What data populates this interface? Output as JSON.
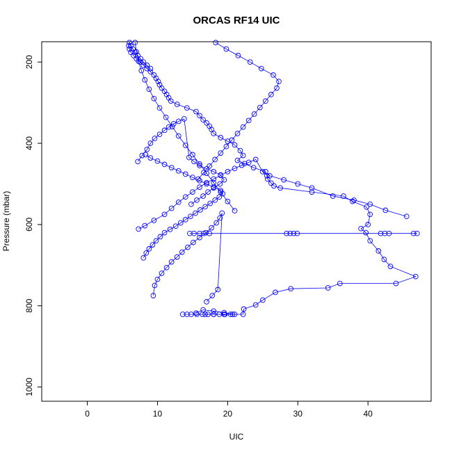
{
  "chart_data": {
    "type": "scatter",
    "title": "ORCAS RF14 UIC",
    "xlabel": "UIC",
    "ylabel": "Pressure (mbar)",
    "xlim": [
      -6.5,
      49
    ],
    "ylim": [
      1035,
      150
    ],
    "y_reversed": true,
    "x_ticks": [
      0,
      10,
      20,
      30,
      40
    ],
    "y_ticks": [
      200,
      400,
      600,
      800,
      1000
    ],
    "grid": false,
    "legend": "none",
    "marker": "open-circle",
    "connected": true,
    "series_color": "#0000ff",
    "x": [
      16.8,
      18.0,
      19.5,
      20.7,
      22.2,
      22.3,
      24.0,
      25.0,
      26.8,
      29.0,
      34.3,
      36.0,
      44.0,
      46.8,
      43.2,
      42.3,
      41.5,
      40.3,
      39.7,
      39.0,
      40.0,
      40.3,
      39.8,
      37.8,
      36.5,
      32.0,
      27.5,
      26.6,
      26.2,
      25.7,
      25.6,
      25.4,
      23.7,
      22.4,
      21.4,
      22.2,
      21.8,
      21.0,
      20.0,
      19.0,
      18.0,
      17.7,
      17.4,
      17.0,
      16.5,
      16.0,
      15.5,
      14.2,
      12.8,
      11.9,
      11.6,
      11.3,
      11.0,
      10.6,
      10.3,
      10.1,
      9.8,
      9.5,
      9.0,
      8.5,
      8.0,
      7.5,
      7.0,
      6.6,
      6.2,
      6.0,
      5.9,
      6.0,
      6.2,
      6.5,
      6.8,
      7.2,
      7.6,
      8.0,
      8.5,
      9.0
    ],
    "y": [
      821,
      821,
      821,
      821,
      821,
      808,
      798,
      786,
      767,
      758,
      756,
      745,
      745,
      728,
      703,
      686,
      665,
      640,
      620,
      610,
      600,
      575,
      557,
      543,
      530,
      520,
      510,
      505,
      498,
      488,
      480,
      470,
      460,
      450,
      442,
      430,
      418,
      404,
      395,
      386,
      376,
      366,
      358,
      350,
      342,
      332,
      322,
      313,
      304,
      296,
      288,
      280,
      272,
      264,
      256,
      248,
      240,
      232,
      224,
      216,
      208,
      200,
      192,
      184,
      176,
      168,
      160,
      152,
      160,
      168,
      176,
      184,
      192,
      200,
      208,
      216
    ],
    "series": [
      {
        "x": [
          13.6,
          14.2,
          14.8,
          15.6,
          16.4,
          17.2,
          18.0,
          18.8,
          19.6,
          20.4,
          21.0,
          19.5,
          18.0,
          16.5,
          15.5
        ],
        "y": [
          821,
          821,
          821,
          821,
          821,
          821,
          821,
          821,
          821,
          821,
          821,
          817,
          813,
          810,
          818
        ]
      },
      {
        "x": [
          14.6,
          15.2,
          16.0,
          16.6,
          17.4,
          28.4,
          28.9,
          29.4,
          29.9,
          41.8,
          42.4,
          43.0,
          46.5,
          47.0
        ],
        "y": [
          622,
          622,
          622,
          622,
          622,
          622,
          622,
          622,
          622,
          622,
          622,
          622,
          622,
          622
        ]
      },
      {
        "x": [
          7.3,
          8.2,
          9.5,
          11.0,
          12.0,
          13.0,
          14.0,
          15.0,
          16.0,
          17.0,
          18.0,
          19.0,
          20.0,
          21.0,
          22.0,
          23.0,
          24.0,
          25.0,
          26.0,
          28.0,
          30.0,
          32.0,
          35.0,
          38.0,
          40.3,
          42.5,
          45.5
        ],
        "y": [
          611,
          603,
          590,
          575,
          560,
          545,
          532,
          520,
          508,
          497,
          488,
          479,
          470,
          462,
          454,
          447,
          440,
          470,
          480,
          490,
          500,
          510,
          530,
          540,
          550,
          565,
          580
        ]
      },
      {
        "x": [
          7.2,
          7.8,
          8.5,
          9.0,
          9.6,
          10.3,
          11.0,
          11.6,
          12.3,
          13.0,
          13.8,
          14.5,
          15.2,
          16.0,
          17.0,
          18.0,
          19.0,
          19.5,
          18.9,
          18.0,
          17.2,
          16.5,
          15.6,
          14.8
        ],
        "y": [
          445,
          430,
          415,
          400,
          388,
          378,
          368,
          360,
          352,
          346,
          340,
          435,
          445,
          455,
          463,
          470,
          478,
          490,
          500,
          510,
          520,
          530,
          540,
          550
        ]
      },
      {
        "x": [
          8.0,
          8.4,
          8.8,
          9.3,
          9.8,
          10.4,
          11.0,
          11.8,
          12.6,
          13.3,
          14.0,
          14.7,
          15.4,
          16.1,
          16.8,
          17.5,
          18.2,
          18.8,
          19.3,
          19.0,
          18.0,
          17.0,
          16.0,
          15.0,
          14.0,
          13.0,
          12.0,
          11.0,
          10.0,
          9.0,
          8.3
        ],
        "y": [
          682,
          670,
          660,
          650,
          640,
          630,
          620,
          612,
          604,
          596,
          588,
          580,
          572,
          564,
          556,
          548,
          540,
          532,
          524,
          516,
          508,
          500,
          492,
          484,
          476,
          468,
          460,
          452,
          444,
          436,
          428
        ]
      },
      {
        "x": [
          9.4,
          9.6,
          10.0,
          10.6,
          11.3,
          12.0,
          12.8,
          13.5,
          14.3,
          15.1,
          16.0,
          16.9,
          17.7,
          18.4,
          18.9,
          19.2,
          18.6,
          17.8,
          17.0
        ],
        "y": [
          775,
          750,
          735,
          720,
          706,
          692,
          680,
          668,
          656,
          644,
          632,
          620,
          608,
          596,
          584,
          572,
          760,
          775,
          790
        ]
      },
      {
        "x": [
          18.3,
          19.8,
          21.5,
          23.2,
          24.8,
          26.5,
          27.3,
          27.0,
          26.2,
          25.4,
          24.6,
          23.8,
          23.0,
          22.2,
          21.4,
          20.6,
          19.8,
          19.0,
          18.2,
          17.4,
          16.6,
          15.8
        ],
        "y": [
          152,
          168,
          184,
          200,
          216,
          232,
          248,
          264,
          280,
          296,
          312,
          328,
          344,
          360,
          376,
          392,
          408,
          424,
          440,
          456,
          472,
          488
        ]
      },
      {
        "x": [
          6.8,
          7.0,
          7.3,
          7.7,
          8.2,
          8.8,
          9.5,
          10.3,
          11.2,
          12.1,
          13.0,
          14.0,
          15.0,
          16.0,
          17.0,
          18.0,
          19.0,
          20.0,
          21.0
        ],
        "y": [
          152,
          175,
          198,
          221,
          244,
          267,
          290,
          313,
          336,
          359,
          382,
          405,
          428,
          451,
          474,
          497,
          520,
          543,
          566
        ]
      }
    ]
  }
}
